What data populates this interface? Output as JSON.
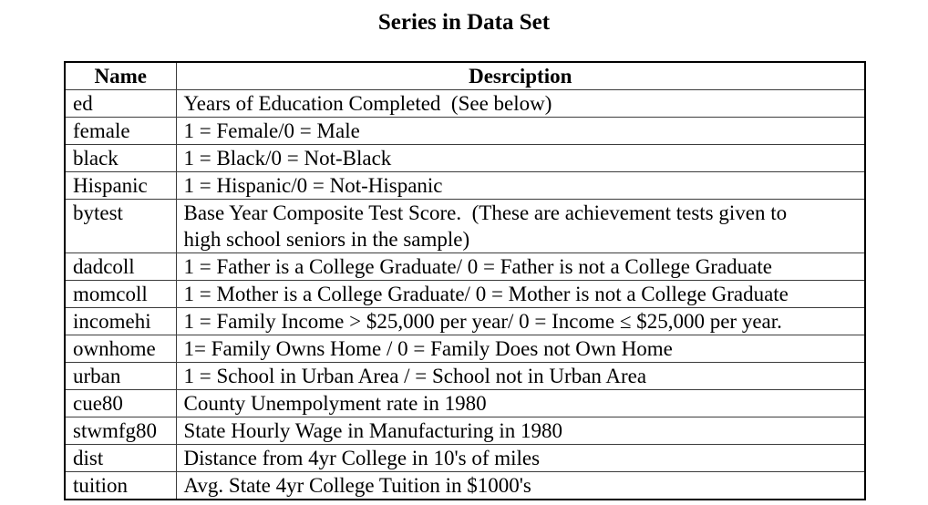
{
  "title": "Series in Data Set",
  "table": {
    "headers": [
      "Name",
      "Desrciption"
    ],
    "rows": [
      {
        "name": "ed",
        "description": "Years of Education Completed  (See below)"
      },
      {
        "name": "female",
        "description": "1 = Female/0 = Male"
      },
      {
        "name": "black",
        "description": "1 = Black/0 = Not-Black"
      },
      {
        "name": "Hispanic",
        "description": "1 = Hispanic/0 = Not-Hispanic"
      },
      {
        "name": "bytest",
        "description": "Base Year Composite Test Score.  (These are achievement tests given to\nhigh school seniors in the sample)"
      },
      {
        "name": "dadcoll",
        "description": "1 = Father is a College Graduate/ 0 = Father is not a College Graduate"
      },
      {
        "name": "momcoll",
        "description": "1 = Mother is a College Graduate/ 0 = Mother is not a College Graduate"
      },
      {
        "name": "incomehi",
        "description": "1 = Family Income > $25,000 per year/ 0 = Income ≤ $25,000 per year."
      },
      {
        "name": "ownhome",
        "description": "1= Family Owns Home / 0 = Family Does not Own Home"
      },
      {
        "name": "urban",
        "description": "1 = School in Urban Area / = School not in Urban Area"
      },
      {
        "name": "cue80",
        "description": "County Unempolyment rate in 1980"
      },
      {
        "name": "stwmfg80",
        "description": "State Hourly Wage in Manufacturing in 1980"
      },
      {
        "name": "dist",
        "description": "Distance from 4yr College in 10's of miles"
      },
      {
        "name": "tuition",
        "description": "Avg. State 4yr College Tuition in $1000's"
      }
    ]
  },
  "colors": {
    "text": "#000000",
    "background": "#ffffff",
    "border": "#3c3c3c"
  }
}
